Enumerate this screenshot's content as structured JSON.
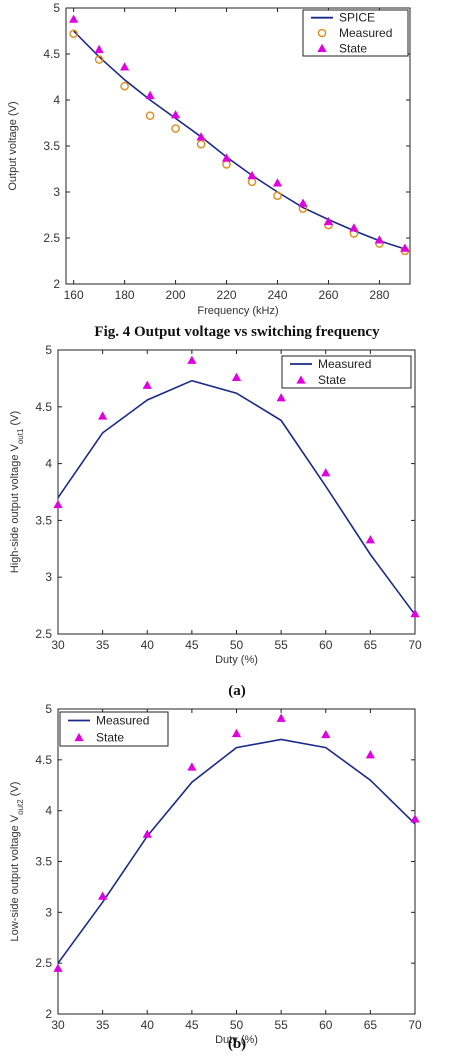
{
  "captions": {
    "fig4": "Fig. 4 Output voltage vs switching frequency",
    "a": "(a)",
    "b": "(b)"
  },
  "colors": {
    "line": "#1a2a8a",
    "marker": "#e000e0",
    "measured_marker": "#e08a1a"
  },
  "chart_data": [
    {
      "type": "line",
      "xlabel": "Frequency (kHz)",
      "ylabel": "Output voltage (V)",
      "xlim": [
        157,
        292
      ],
      "ylim": [
        2,
        5
      ],
      "xticks": [
        "160",
        "180",
        "200",
        "220",
        "240",
        "260",
        "280"
      ],
      "yticks": [
        "2",
        "2.5",
        "3",
        "3.5",
        "4",
        "4.5",
        "5"
      ],
      "legend_position": "top-right",
      "series": [
        {
          "name": "SPICE",
          "style": "line",
          "x": [
            160,
            170,
            180,
            190,
            200,
            210,
            220,
            230,
            240,
            250,
            260,
            270,
            280,
            290
          ],
          "values": [
            4.75,
            4.47,
            4.22,
            4.0,
            3.8,
            3.6,
            3.38,
            3.18,
            3.0,
            2.83,
            2.7,
            2.58,
            2.47,
            2.38
          ]
        },
        {
          "name": "Measured",
          "style": "circle",
          "x": [
            160,
            170,
            180,
            190,
            200,
            210,
            220,
            230,
            240,
            250,
            260,
            270,
            280,
            290
          ],
          "values": [
            4.72,
            4.44,
            4.15,
            3.83,
            3.69,
            3.52,
            3.3,
            3.11,
            2.96,
            2.82,
            2.64,
            2.55,
            2.44,
            2.36
          ]
        },
        {
          "name": "State",
          "style": "triangle",
          "x": [
            160,
            170,
            180,
            190,
            200,
            210,
            220,
            230,
            240,
            250,
            260,
            270,
            280,
            290
          ],
          "values": [
            4.88,
            4.55,
            4.36,
            4.05,
            3.84,
            3.6,
            3.37,
            3.18,
            3.1,
            2.88,
            2.68,
            2.61,
            2.48,
            2.39
          ]
        }
      ]
    },
    {
      "type": "line",
      "xlabel": "Duty (%)",
      "ylabel": "High-side output voltage V_out1 (V)",
      "ylabel_main": "High-side output voltage V",
      "ylabel_sub": "out1",
      "ylabel_unit": " (V)",
      "xlim": [
        30,
        70
      ],
      "ylim": [
        2.5,
        5
      ],
      "xticks": [
        "30",
        "35",
        "40",
        "45",
        "50",
        "55",
        "60",
        "65",
        "70"
      ],
      "yticks": [
        "2.5",
        "3",
        "3.5",
        "4",
        "4.5",
        "5"
      ],
      "legend_position": "top-right",
      "series": [
        {
          "name": "Measured",
          "style": "line",
          "x": [
            30,
            35,
            40,
            45,
            50,
            55,
            60,
            65,
            70
          ],
          "values": [
            3.7,
            4.27,
            4.56,
            4.73,
            4.62,
            4.38,
            3.8,
            3.2,
            2.67
          ]
        },
        {
          "name": "State",
          "style": "triangle",
          "x": [
            30,
            35,
            40,
            45,
            50,
            55,
            60,
            65,
            70
          ],
          "values": [
            3.64,
            4.42,
            4.69,
            4.91,
            4.76,
            4.58,
            3.92,
            3.33,
            2.68
          ]
        }
      ]
    },
    {
      "type": "line",
      "xlabel": "Duty (%)",
      "ylabel": "Low-side output voltage V_out2 (V)",
      "ylabel_main": "Low-side output voltage V",
      "ylabel_sub": "out2",
      "ylabel_unit": " (V)",
      "xlim": [
        30,
        70
      ],
      "ylim": [
        2,
        5
      ],
      "xticks": [
        "30",
        "35",
        "40",
        "45",
        "50",
        "55",
        "60",
        "65",
        "70"
      ],
      "yticks": [
        "2",
        "2.5",
        "3",
        "3.5",
        "4",
        "4.5",
        "5"
      ],
      "legend_position": "top-left",
      "series": [
        {
          "name": "Measured",
          "style": "line",
          "x": [
            30,
            35,
            40,
            45,
            50,
            55,
            60,
            65,
            70
          ],
          "values": [
            2.5,
            3.1,
            3.75,
            4.28,
            4.62,
            4.7,
            4.62,
            4.3,
            3.87
          ]
        },
        {
          "name": "State",
          "style": "triangle",
          "x": [
            30,
            35,
            40,
            45,
            50,
            55,
            60,
            65,
            70
          ],
          "values": [
            2.45,
            3.16,
            3.77,
            4.43,
            4.76,
            4.91,
            4.75,
            4.55,
            3.92
          ]
        }
      ]
    }
  ]
}
